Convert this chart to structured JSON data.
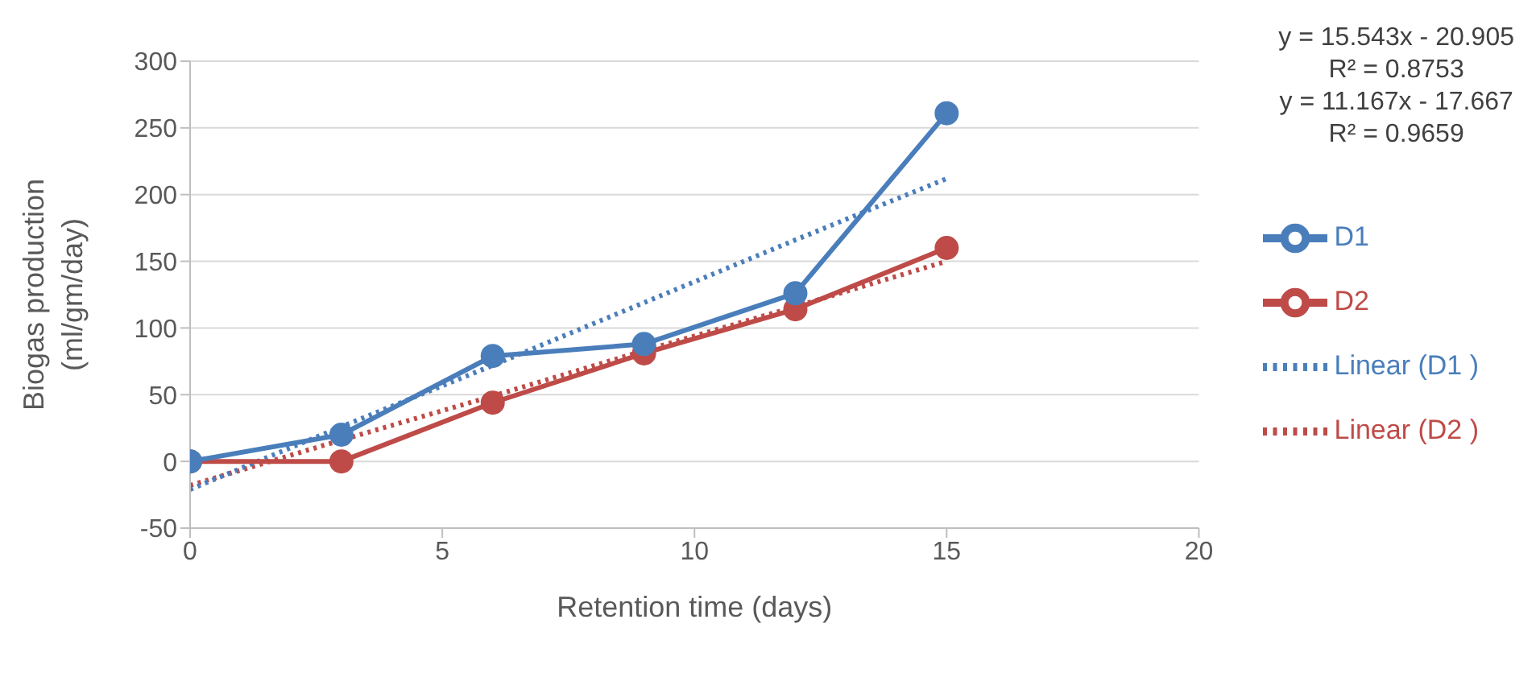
{
  "chart_data": {
    "type": "line",
    "xlabel": "Retention time (days)",
    "ylabel": "Biogas production (ml/gm/day)",
    "xlim": [
      0,
      20
    ],
    "xticks": [
      0,
      5,
      10,
      15,
      20
    ],
    "ylim": [
      -50,
      300
    ],
    "yticks": [
      -50,
      0,
      50,
      100,
      150,
      200,
      250,
      300
    ],
    "grid": "y",
    "legend": "right",
    "marker": "circle",
    "line_style": "solid",
    "x": [
      0,
      3,
      6,
      9,
      12,
      15
    ],
    "series": [
      {
        "name": "D1",
        "color": "#4a7ebb",
        "values": [
          0,
          20,
          79,
          88,
          126,
          261
        ]
      },
      {
        "name": "D2",
        "color": "#be4b48",
        "values": [
          0,
          0,
          44,
          81,
          114,
          160
        ]
      },
      {
        "name": "Linear (D1 )",
        "color": "#4a7ebb",
        "values": [
          -21,
          26,
          72,
          119,
          166,
          212
        ],
        "marker": "none",
        "line_style": "dotted"
      },
      {
        "name": "Linear (D2 )",
        "color": "#be4b48",
        "values": [
          -18,
          16,
          49,
          83,
          116,
          150
        ],
        "marker": "none",
        "line_style": "dotted"
      }
    ],
    "annotations": [
      "y = 15.543x - 20.905",
      "R² = 0.8753",
      "y = 11.167x - 17.667",
      "R² = 0.9659"
    ]
  }
}
